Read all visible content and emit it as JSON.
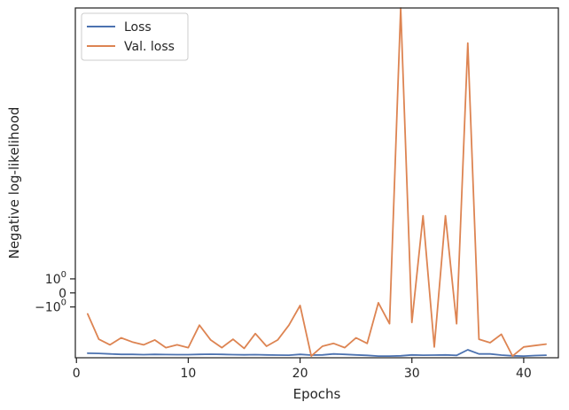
{
  "chart_data": {
    "type": "line",
    "title": "",
    "xlabel": "Epochs",
    "ylabel": "Negative log-likelihood",
    "xlim": [
      -0.1,
      43.1
    ],
    "y_scale": "symlog",
    "ylim": [
      -4.62,
      20.3
    ],
    "xticks": [
      0,
      10,
      20,
      30,
      40
    ],
    "xtick_labels": [
      "0",
      "10",
      "20",
      "30",
      "40"
    ],
    "yticks": [
      -1,
      0,
      1
    ],
    "ytick_labels": [
      "−1",
      "0",
      "10",
      "0"
    ],
    "ytick_parts": [
      {
        "base": "−10",
        "exp": "0"
      },
      {
        "base": "0",
        "exp": ""
      },
      {
        "base": "10",
        "exp": "0"
      }
    ],
    "grid": false,
    "legend": "top-left",
    "x": [
      1,
      2,
      3,
      4,
      5,
      6,
      7,
      8,
      9,
      10,
      11,
      12,
      13,
      14,
      15,
      16,
      17,
      18,
      19,
      20,
      21,
      22,
      23,
      24,
      25,
      26,
      27,
      28,
      29,
      30,
      31,
      32,
      33,
      34,
      35,
      36,
      37,
      38,
      39,
      40,
      41,
      42
    ],
    "series": [
      {
        "name": "Loss",
        "color": "#4c72b0",
        "values": [
          -4.3,
          -4.31,
          -4.35,
          -4.38,
          -4.38,
          -4.4,
          -4.38,
          -4.39,
          -4.4,
          -4.4,
          -4.38,
          -4.37,
          -4.38,
          -4.4,
          -4.41,
          -4.4,
          -4.42,
          -4.43,
          -4.44,
          -4.38,
          -4.43,
          -4.42,
          -4.35,
          -4.38,
          -4.42,
          -4.45,
          -4.5,
          -4.5,
          -4.48,
          -4.42,
          -4.44,
          -4.43,
          -4.42,
          -4.45,
          -4.05,
          -4.35,
          -4.35,
          -4.43,
          -4.48,
          -4.5,
          -4.46,
          -4.44
        ]
      },
      {
        "name": "Val. loss",
        "color": "#dd8452",
        "values": [
          -1.5,
          -3.3,
          -3.7,
          -3.2,
          -3.5,
          -3.7,
          -3.35,
          -3.9,
          -3.7,
          -3.9,
          -2.3,
          -3.35,
          -3.9,
          -3.3,
          -3.95,
          -2.9,
          -3.8,
          -3.35,
          -2.3,
          -0.9,
          -4.5,
          -3.8,
          -3.6,
          -3.9,
          -3.2,
          -3.6,
          -0.7,
          -2.2,
          20.3,
          -2.1,
          5.5,
          -3.85,
          5.5,
          -2.2,
          17.8,
          -3.3,
          -3.55,
          -2.95,
          -4.5,
          -3.85,
          -3.75,
          -3.65
        ]
      }
    ]
  }
}
